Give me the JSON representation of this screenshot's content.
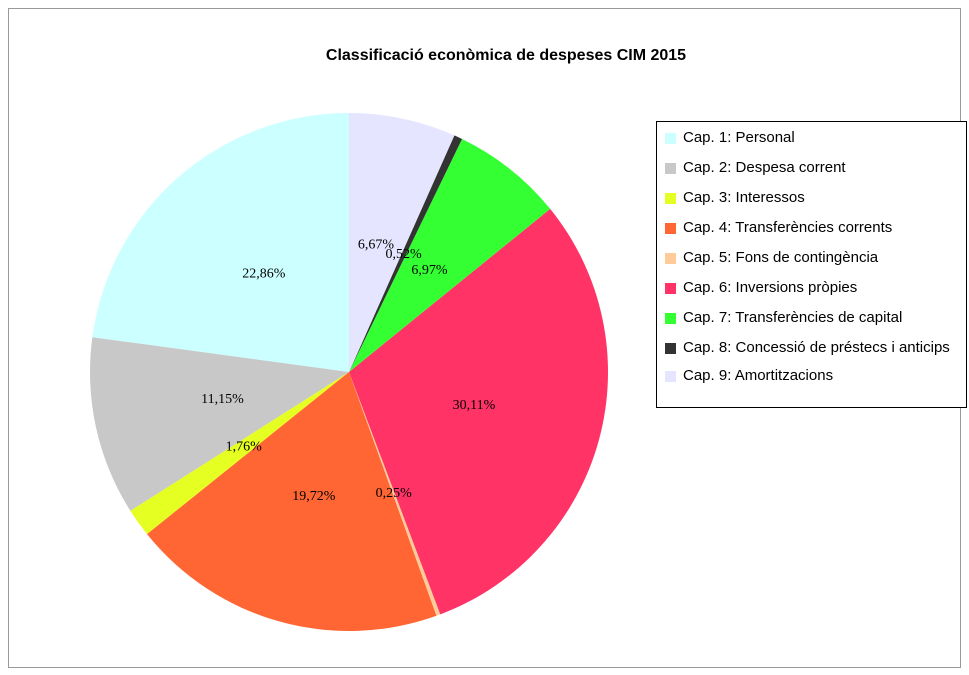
{
  "chart_data": {
    "type": "pie",
    "title": "Classificació econòmica de despeses CIM 2015",
    "categories": [
      "Cap. 1: Personal",
      "Cap. 2: Despesa corrent",
      "Cap. 3: Interessos",
      "Cap. 4: Transferències corrents",
      "Cap. 5: Fons de contingència",
      "Cap. 6: Inversions pròpies",
      "Cap. 7: Transferències de capital",
      "Cap. 8: Concessió de préstecs i anticips",
      "Cap. 9: Amortitzacions"
    ],
    "values": [
      22.86,
      11.15,
      1.76,
      19.72,
      0.25,
      30.11,
      6.97,
      0.52,
      6.67
    ],
    "value_labels": [
      "22,86%",
      "11,15%",
      "1,76%",
      "19,72%",
      "0,25%",
      "30,11%",
      "6,97%",
      "0,52%",
      "6,67%"
    ],
    "colors": [
      "#ccffff",
      "#c8c8c8",
      "#e5ff22",
      "#ff6633",
      "#ffcc99",
      "#ff3366",
      "#33ff33",
      "#333333",
      "#e5e5ff"
    ],
    "legend": "right"
  }
}
